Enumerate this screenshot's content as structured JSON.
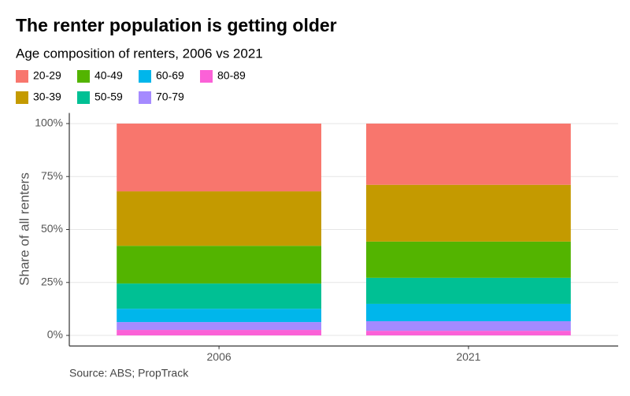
{
  "chart_data": {
    "type": "stacked_bar",
    "title": "The renter population is getting older",
    "subtitle": "Age composition of renters, 2006 vs 2021",
    "y_label": "Share of all renters",
    "caption": "Source: ABS; PropTrack",
    "categories": [
      "2006",
      "2021"
    ],
    "series": [
      {
        "name": "20-29",
        "color": "#F8766D",
        "values": [
          32.0,
          28.9
        ]
      },
      {
        "name": "30-39",
        "color": "#C49A00",
        "values": [
          25.7,
          26.8
        ]
      },
      {
        "name": "40-49",
        "color": "#53B400",
        "values": [
          17.8,
          17.1
        ]
      },
      {
        "name": "50-59",
        "color": "#00C094",
        "values": [
          11.9,
          12.3
        ]
      },
      {
        "name": "60-69",
        "color": "#00B6EB",
        "values": [
          6.3,
          8.2
        ]
      },
      {
        "name": "70-79",
        "color": "#A58AFF",
        "values": [
          3.7,
          4.5
        ]
      },
      {
        "name": "80-89",
        "color": "#FB61D7",
        "values": [
          2.6,
          2.2
        ]
      }
    ],
    "ylim": [
      -5,
      105
    ],
    "yticks": [
      {
        "value": 0,
        "label": "0%"
      },
      {
        "value": 25,
        "label": "25%"
      },
      {
        "value": 50,
        "label": "50%"
      },
      {
        "value": 75,
        "label": "75%"
      },
      {
        "value": 100,
        "label": "100%"
      }
    ],
    "grid": true
  }
}
